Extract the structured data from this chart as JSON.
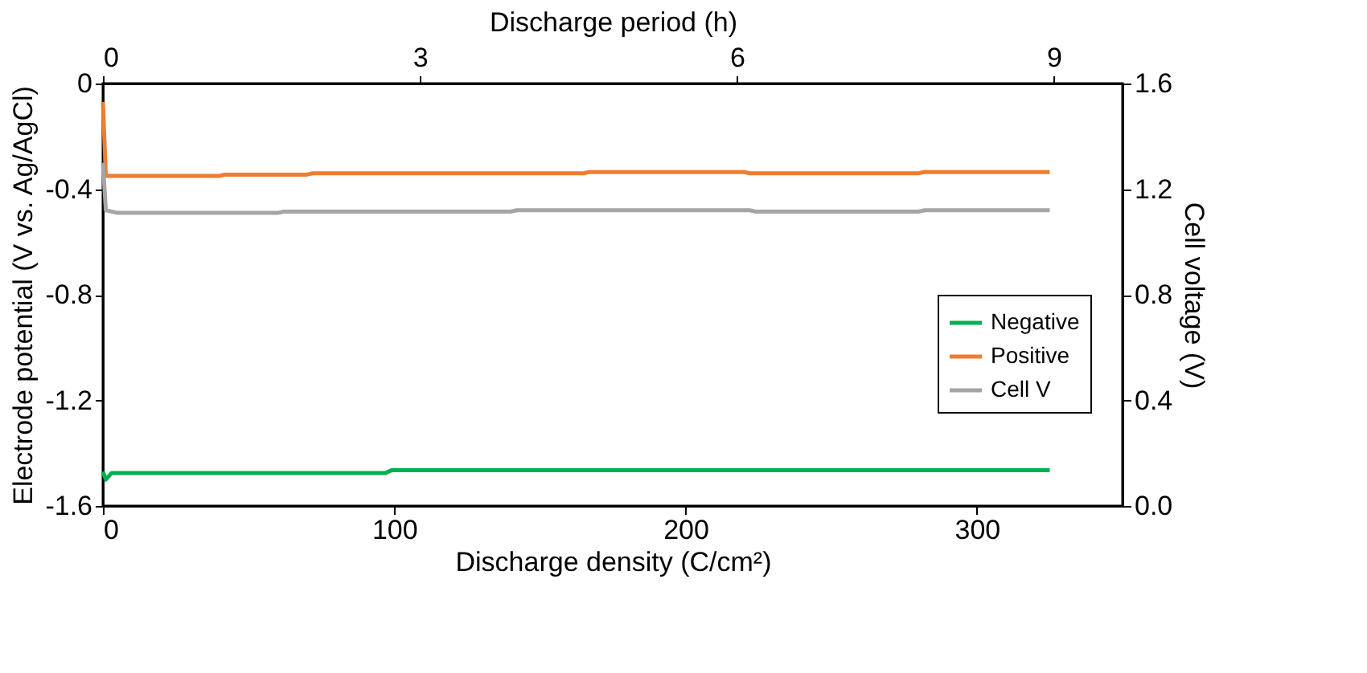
{
  "chart_data": {
    "type": "line",
    "xlabel": "Discharge density  (C/cm²)",
    "ylabel": "Electrode potential  (V vs. Ag/AgCl)",
    "y2label": "Cell voltage  (V)",
    "x2label": "Discharge period  (h)",
    "xlim": [
      0,
      350
    ],
    "xticks": [
      0,
      100,
      200,
      300
    ],
    "x2lim": [
      0,
      9.65
    ],
    "x2ticks": [
      0,
      3,
      6,
      9
    ],
    "ylim": [
      -1.6,
      0
    ],
    "yticks": [
      -1.6,
      -1.2,
      -0.8,
      -0.4,
      0
    ],
    "y2lim": [
      0,
      1.6
    ],
    "y2ticks": [
      {
        "value": 0,
        "label": "0.0"
      },
      0.4,
      0.8,
      1.2,
      1.6
    ],
    "series": [
      {
        "name": "Negative",
        "color": "#00b050",
        "x": [
          0,
          1,
          3,
          97,
          99,
          325
        ],
        "values": [
          -1.47,
          -1.5,
          -1.475,
          -1.475,
          -1.465,
          -1.465
        ]
      },
      {
        "name": "Positive",
        "color": "#ed7d31",
        "x": [
          0,
          1,
          40,
          42,
          70,
          72,
          165,
          167,
          220,
          222,
          280,
          282,
          325
        ],
        "values": [
          -0.07,
          -0.35,
          -0.35,
          -0.345,
          -0.345,
          -0.34,
          -0.34,
          -0.335,
          -0.335,
          -0.34,
          -0.34,
          -0.335,
          -0.335
        ]
      },
      {
        "name": "Cell V",
        "color": "#a5a5a5",
        "axis": "y2",
        "x": [
          0,
          1,
          5,
          60,
          62,
          140,
          142,
          222,
          224,
          280,
          282,
          325
        ],
        "values": [
          1.3,
          1.12,
          1.11,
          1.11,
          1.115,
          1.115,
          1.12,
          1.12,
          1.115,
          1.115,
          1.12,
          1.12
        ]
      }
    ],
    "legend": "right",
    "grid": false,
    "marker": "none",
    "line_style": "solid"
  }
}
